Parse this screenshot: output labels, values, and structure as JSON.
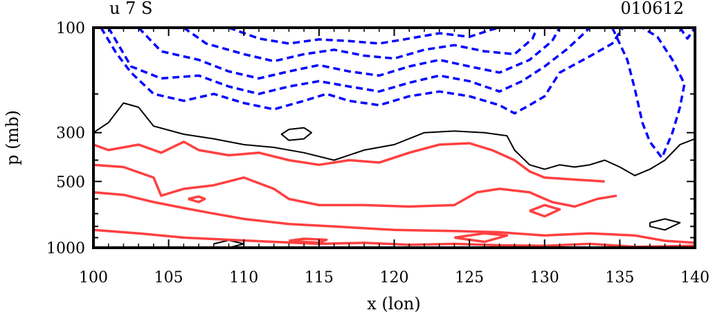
{
  "chart_data": {
    "type": "contour",
    "title_left": "u 7 S",
    "title_right": "010612",
    "xlabel": "x (lon)",
    "ylabel": "p (mb)",
    "xlim": [
      100,
      140
    ],
    "ylim": [
      1000,
      100
    ],
    "y_scale": "log",
    "x_ticks": [
      "100",
      "105",
      "110",
      "115",
      "120",
      "125",
      "130",
      "135",
      "140"
    ],
    "y_ticks": [
      "100",
      "300",
      "500",
      "1000"
    ],
    "contour_styles": {
      "negative": {
        "color": "#0000ff",
        "dash": "dashed"
      },
      "zero": {
        "color": "#000000",
        "dash": "solid"
      },
      "positive": {
        "color": "#ff4040",
        "dash": "solid"
      }
    },
    "contours": [
      {
        "kind": "negative",
        "points": [
          [
            100.5,
            100
          ],
          [
            101.5,
            130
          ],
          [
            102.5,
            160
          ],
          [
            104,
            200
          ],
          [
            106,
            215
          ],
          [
            108,
            200
          ],
          [
            110,
            220
          ],
          [
            112,
            235
          ],
          [
            114,
            215
          ],
          [
            115.5,
            200
          ],
          [
            117,
            215
          ],
          [
            119,
            225
          ],
          [
            121,
            205
          ],
          [
            123,
            195
          ],
          [
            125,
            205
          ],
          [
            127,
            225
          ],
          [
            128,
            245
          ],
          [
            129,
            225
          ],
          [
            130,
            205
          ],
          [
            131,
            160
          ],
          [
            133,
            135
          ],
          [
            134.5,
            118
          ],
          [
            135.2,
            100
          ]
        ]
      },
      {
        "kind": "negative",
        "points": [
          [
            101,
            100
          ],
          [
            102.5,
            150
          ],
          [
            104.5,
            170
          ],
          [
            107,
            165
          ],
          [
            109,
            185
          ],
          [
            111,
            200
          ],
          [
            113,
            185
          ],
          [
            115,
            175
          ],
          [
            117,
            185
          ],
          [
            119,
            195
          ],
          [
            121,
            178
          ],
          [
            123,
            165
          ],
          [
            125,
            175
          ],
          [
            127,
            195
          ],
          [
            128.5,
            175
          ],
          [
            130,
            150
          ],
          [
            131.5,
            125
          ],
          [
            132.5,
            108
          ],
          [
            133,
            100
          ]
        ]
      },
      {
        "kind": "negative",
        "points": [
          [
            103,
            100
          ],
          [
            104.5,
            128
          ],
          [
            107,
            140
          ],
          [
            109,
            158
          ],
          [
            111,
            170
          ],
          [
            113,
            158
          ],
          [
            115,
            148
          ],
          [
            117,
            158
          ],
          [
            119,
            165
          ],
          [
            121,
            150
          ],
          [
            123,
            140
          ],
          [
            125,
            150
          ],
          [
            127,
            160
          ],
          [
            129,
            140
          ],
          [
            130.5,
            115
          ],
          [
            131,
            100
          ]
        ]
      },
      {
        "kind": "negative",
        "points": [
          [
            106,
            100
          ],
          [
            107.5,
            118
          ],
          [
            110,
            132
          ],
          [
            112,
            142
          ],
          [
            114,
            132
          ],
          [
            116,
            126
          ],
          [
            118,
            134
          ],
          [
            120,
            138
          ],
          [
            122,
            126
          ],
          [
            124,
            120
          ],
          [
            126,
            128
          ],
          [
            128,
            132
          ],
          [
            129.2,
            112
          ],
          [
            129.5,
            100
          ]
        ]
      },
      {
        "kind": "negative",
        "points": [
          [
            109,
            100
          ],
          [
            111,
            112
          ],
          [
            113,
            118
          ],
          [
            115,
            113
          ],
          [
            117,
            115
          ],
          [
            119,
            118
          ],
          [
            121,
            112
          ],
          [
            123,
            106
          ],
          [
            125,
            110
          ],
          [
            126.5,
            102
          ],
          [
            127,
            100
          ]
        ]
      },
      {
        "kind": "negative",
        "points": [
          [
            134.5,
            100
          ],
          [
            135.5,
            140
          ],
          [
            136,
            190
          ],
          [
            136.5,
            270
          ],
          [
            137,
            330
          ],
          [
            137.8,
            390
          ],
          [
            138.5,
            300
          ],
          [
            139,
            230
          ],
          [
            139.3,
            180
          ],
          [
            138.5,
            140
          ],
          [
            137.5,
            110
          ],
          [
            136.5,
            100
          ]
        ]
      },
      {
        "kind": "negative",
        "points": [
          [
            139,
            100
          ],
          [
            139.5,
            112
          ],
          [
            140,
            100
          ]
        ]
      },
      {
        "kind": "zero",
        "points": [
          [
            100,
            300
          ],
          [
            101,
            270
          ],
          [
            102,
            220
          ],
          [
            103,
            230
          ],
          [
            104,
            280
          ],
          [
            106,
            305
          ],
          [
            108,
            320
          ],
          [
            110,
            340
          ],
          [
            112,
            350
          ],
          [
            114,
            370
          ],
          [
            116,
            400
          ],
          [
            118,
            360
          ],
          [
            120,
            340
          ],
          [
            122,
            300
          ],
          [
            124,
            295
          ],
          [
            126,
            300
          ],
          [
            127.5,
            310
          ],
          [
            128,
            360
          ],
          [
            129,
            420
          ],
          [
            130,
            440
          ],
          [
            131,
            420
          ],
          [
            132,
            430
          ],
          [
            133,
            420
          ],
          [
            134,
            400
          ],
          [
            135,
            430
          ],
          [
            136,
            470
          ],
          [
            137,
            440
          ],
          [
            138,
            400
          ],
          [
            139,
            340
          ],
          [
            140,
            320
          ]
        ]
      },
      {
        "kind": "zero",
        "points": [
          [
            113,
            290
          ],
          [
            114,
            285
          ],
          [
            114.5,
            300
          ],
          [
            114,
            320
          ],
          [
            113,
            325
          ],
          [
            112.5,
            305
          ],
          [
            113,
            290
          ]
        ]
      },
      {
        "kind": "zero",
        "points": [
          [
            137,
            770
          ],
          [
            138,
            740
          ],
          [
            139,
            770
          ],
          [
            138,
            830
          ],
          [
            137,
            800
          ],
          [
            137,
            770
          ]
        ]
      },
      {
        "kind": "zero",
        "points": [
          [
            108,
            960
          ],
          [
            109,
            925
          ],
          [
            110,
            960
          ],
          [
            109,
            1000
          ]
        ]
      },
      {
        "kind": "positive",
        "points": [
          [
            100,
            340
          ],
          [
            101,
            360
          ],
          [
            103,
            340
          ],
          [
            104.5,
            370
          ],
          [
            106,
            330
          ],
          [
            107,
            360
          ],
          [
            109,
            380
          ],
          [
            111,
            370
          ],
          [
            113,
            400
          ],
          [
            115,
            420
          ],
          [
            117,
            400
          ],
          [
            119,
            410
          ],
          [
            121,
            370
          ],
          [
            123,
            340
          ],
          [
            125,
            335
          ],
          [
            126.5,
            360
          ],
          [
            128,
            400
          ],
          [
            129,
            450
          ],
          [
            130,
            480
          ],
          [
            132,
            490
          ],
          [
            134,
            500
          ]
        ]
      },
      {
        "kind": "positive",
        "points": [
          [
            100,
            420
          ],
          [
            102,
            430
          ],
          [
            104,
            480
          ],
          [
            104.5,
            580
          ],
          [
            106,
            540
          ],
          [
            108,
            520
          ],
          [
            110,
            480
          ],
          [
            112,
            540
          ],
          [
            113,
            600
          ],
          [
            115,
            640
          ],
          [
            118,
            640
          ],
          [
            121,
            650
          ],
          [
            124,
            640
          ],
          [
            125.5,
            560
          ],
          [
            127,
            540
          ],
          [
            129,
            560
          ],
          [
            130.5,
            620
          ],
          [
            132,
            650
          ],
          [
            133.5,
            600
          ],
          [
            134.8,
            580
          ]
        ]
      },
      {
        "kind": "positive",
        "points": [
          [
            100,
            560
          ],
          [
            102,
            575
          ],
          [
            104,
            620
          ],
          [
            106,
            660
          ],
          [
            108,
            700
          ],
          [
            110,
            740
          ],
          [
            113,
            780
          ],
          [
            116,
            800
          ],
          [
            120,
            830
          ],
          [
            124,
            840
          ],
          [
            127,
            850
          ],
          [
            130,
            880
          ],
          [
            133,
            860
          ],
          [
            136,
            880
          ],
          [
            138,
            930
          ],
          [
            140,
            950
          ]
        ]
      },
      {
        "kind": "positive",
        "points": [
          [
            100,
            830
          ],
          [
            103,
            860
          ],
          [
            106,
            900
          ],
          [
            109,
            920
          ],
          [
            112,
            940
          ],
          [
            115,
            960
          ],
          [
            118,
            950
          ],
          [
            121,
            970
          ],
          [
            124,
            960
          ],
          [
            127,
            975
          ],
          [
            130,
            980
          ],
          [
            133,
            960
          ],
          [
            136,
            990
          ],
          [
            140,
            980
          ]
        ]
      },
      {
        "kind": "positive",
        "points": [
          [
            106.3,
            600
          ],
          [
            107,
            585
          ],
          [
            107.4,
            600
          ],
          [
            107,
            620
          ],
          [
            106.3,
            600
          ]
        ]
      },
      {
        "kind": "positive",
        "points": [
          [
            113,
            930
          ],
          [
            114,
            910
          ],
          [
            115.5,
            920
          ],
          [
            115,
            950
          ],
          [
            113,
            930
          ]
        ]
      },
      {
        "kind": "positive",
        "points": [
          [
            124,
            900
          ],
          [
            126,
            860
          ],
          [
            127.5,
            880
          ],
          [
            126,
            940
          ],
          [
            124,
            900
          ]
        ]
      },
      {
        "kind": "positive",
        "points": [
          [
            129,
            680
          ],
          [
            130,
            640
          ],
          [
            131,
            670
          ],
          [
            130,
            720
          ],
          [
            129,
            680
          ]
        ]
      }
    ]
  }
}
